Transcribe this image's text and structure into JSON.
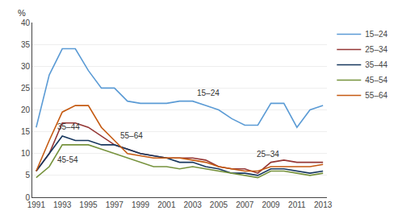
{
  "chart_data": {
    "type": "line",
    "ylabel": "%",
    "x": [
      1991,
      1992,
      1993,
      1994,
      1995,
      1996,
      1997,
      1998,
      1999,
      2000,
      2001,
      2002,
      2003,
      2004,
      2005,
      2006,
      2007,
      2008,
      2009,
      2010,
      2011,
      2012,
      2013
    ],
    "series": [
      {
        "name": "15–24",
        "color": "#5B9BD5",
        "values": [
          16,
          28,
          34,
          34,
          29,
          25,
          25,
          22,
          21.5,
          21.5,
          21.5,
          22,
          22,
          21,
          20,
          18,
          16.5,
          16.5,
          21.5,
          21.5,
          16,
          20,
          21
        ]
      },
      {
        "name": "25–34",
        "color": "#943634",
        "values": [
          6,
          10,
          17,
          17,
          16,
          14,
          12,
          11,
          10,
          9.5,
          9,
          9,
          9,
          8.5,
          7,
          6.5,
          6.5,
          5.5,
          8,
          8.5,
          8,
          8,
          8
        ]
      },
      {
        "name": "35–44",
        "color": "#17375E",
        "values": [
          6,
          10,
          14,
          13,
          13,
          12,
          12,
          11,
          10,
          9.5,
          9,
          8,
          8,
          7,
          6.5,
          5.5,
          5.5,
          5,
          6.5,
          6.5,
          6,
          5.5,
          6
        ]
      },
      {
        "name": "45–54",
        "color": "#76923C",
        "values": [
          4.5,
          7,
          12,
          12,
          12,
          11,
          10,
          9,
          8,
          7,
          7,
          6.5,
          7,
          6.5,
          6,
          5.5,
          5,
          4.5,
          6,
          6,
          5.5,
          5,
          5.5
        ]
      },
      {
        "name": "55–64",
        "color": "#C55A11",
        "values": [
          6,
          13,
          19.5,
          21,
          21,
          16,
          13,
          10,
          9.5,
          9,
          9,
          9,
          8.5,
          8,
          7,
          6.5,
          6,
          6,
          7,
          7,
          7,
          7,
          7.5
        ]
      }
    ],
    "annotations": [
      {
        "text": "15–24",
        "x": 2003.2,
        "y": 22.5
      },
      {
        "text": "35–44",
        "x": 1992.5,
        "y": 14.8
      },
      {
        "text": "45-54",
        "x": 1992.5,
        "y": 7.2
      },
      {
        "text": "55–64",
        "x": 1997.3,
        "y": 12.8
      },
      {
        "text": "25–34",
        "x": 2007.8,
        "y": 8.5
      }
    ],
    "xlim": [
      1990.7,
      2013.3
    ],
    "xticks": [
      1991,
      1993,
      1995,
      1997,
      1999,
      2001,
      2003,
      2005,
      2007,
      2009,
      2011,
      2013
    ],
    "ylim": [
      0,
      40
    ],
    "yticks": [
      0,
      5,
      10,
      15,
      20,
      25,
      30,
      35,
      40
    ],
    "grid": true,
    "legend": "upper right"
  }
}
